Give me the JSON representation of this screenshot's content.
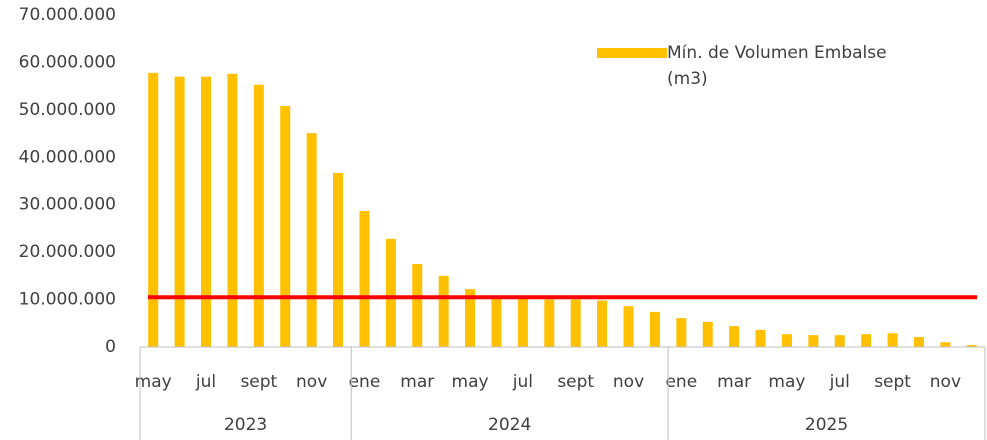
{
  "chart_data": {
    "type": "bar",
    "categories": [
      "may",
      null,
      "jul",
      null,
      "sept",
      null,
      "nov",
      null,
      "ene",
      null,
      "mar",
      null,
      "may",
      null,
      "jul",
      null,
      "sept",
      null,
      "nov",
      null,
      "ene",
      null,
      "mar",
      null,
      "may",
      null,
      "jul",
      null,
      "sept",
      null,
      "nov",
      null
    ],
    "groups": [
      {
        "label": "2023",
        "count": 8
      },
      {
        "label": "2024",
        "count": 12
      },
      {
        "label": "2025",
        "count": 12
      }
    ],
    "series": [
      {
        "name": "Mín. de Volumen Embalse (m3)",
        "color": "#ffc000",
        "values": [
          57800000,
          57000000,
          57000000,
          57600000,
          55300000,
          50800000,
          45100000,
          36700000,
          28700000,
          22800000,
          17500000,
          15000000,
          12200000,
          10500000,
          10200000,
          10000000,
          10000000,
          9800000,
          8600000,
          7400000,
          6100000,
          5300000,
          4400000,
          3600000,
          2700000,
          2500000,
          2500000,
          2700000,
          2900000,
          2100000,
          1000000,
          400000
        ]
      }
    ],
    "reference_line": {
      "value": 10500000,
      "color": "#ff0000"
    },
    "ylim": [
      0,
      70000000
    ],
    "yticks": [
      {
        "value": 0,
        "label": "0"
      },
      {
        "value": 10000000,
        "label": "10.000.000"
      },
      {
        "value": 20000000,
        "label": "20.000.000"
      },
      {
        "value": 30000000,
        "label": "30.000.000"
      },
      {
        "value": 40000000,
        "label": "40.000.000"
      },
      {
        "value": 50000000,
        "label": "50.000.000"
      },
      {
        "value": 60000000,
        "label": "60.000.000"
      },
      {
        "value": 70000000,
        "label": "70.000.000"
      }
    ],
    "grid": false
  }
}
